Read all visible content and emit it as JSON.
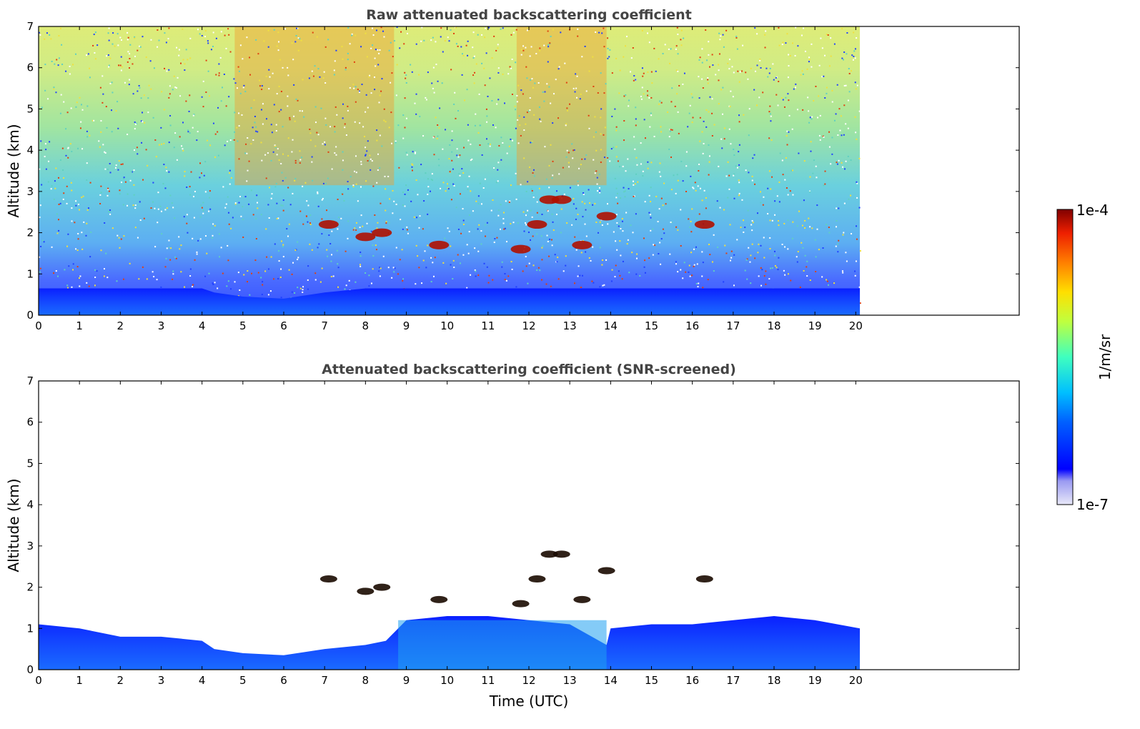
{
  "chart_data": [
    {
      "type": "heatmap",
      "title": "Raw attenuated backscattering coefficient",
      "xlabel": "",
      "ylabel": "Altitude (km)",
      "xlim": [
        0,
        24
      ],
      "ylim": [
        0,
        7
      ],
      "xticks": [
        "0",
        "1",
        "2",
        "3",
        "4",
        "5",
        "6",
        "7",
        "8",
        "9",
        "10",
        "11",
        "12",
        "13",
        "14",
        "15",
        "16",
        "17",
        "18",
        "19",
        "20"
      ],
      "yticks": [
        "0",
        "1",
        "2",
        "3",
        "4",
        "5",
        "6",
        "7"
      ],
      "data_extent_hours": [
        0,
        20.1
      ],
      "clouds": [
        {
          "t": 7.1,
          "z": 2.2
        },
        {
          "t": 8.0,
          "z": 1.9
        },
        {
          "t": 8.4,
          "z": 2.0
        },
        {
          "t": 9.8,
          "z": 1.7
        },
        {
          "t": 11.8,
          "z": 1.6
        },
        {
          "t": 12.2,
          "z": 2.2
        },
        {
          "t": 12.5,
          "z": 2.8
        },
        {
          "t": 12.8,
          "z": 2.8
        },
        {
          "t": 13.3,
          "z": 1.7
        },
        {
          "t": 13.9,
          "z": 2.4
        },
        {
          "t": 16.3,
          "z": 2.2
        }
      ]
    },
    {
      "type": "heatmap",
      "title": "Attenuated backscattering coefficient (SNR-screened)",
      "xlabel": "Time (UTC)",
      "ylabel": "Altitude (km)",
      "xlim": [
        0,
        24
      ],
      "ylim": [
        0,
        7
      ],
      "xticks": [
        "0",
        "1",
        "2",
        "3",
        "4",
        "5",
        "6",
        "7",
        "8",
        "9",
        "10",
        "11",
        "12",
        "13",
        "14",
        "15",
        "16",
        "17",
        "18",
        "19",
        "20"
      ],
      "yticks": [
        "0",
        "1",
        "2",
        "3",
        "4",
        "5",
        "6",
        "7"
      ],
      "data_extent_hours": [
        0,
        20.1
      ],
      "boundary_layer_top_km": [
        [
          0,
          1.1
        ],
        [
          1,
          1.0
        ],
        [
          2,
          0.8
        ],
        [
          3,
          0.8
        ],
        [
          4,
          0.7
        ],
        [
          4.3,
          0.5
        ],
        [
          5,
          0.4
        ],
        [
          6,
          0.35
        ],
        [
          7,
          0.5
        ],
        [
          8,
          0.6
        ],
        [
          8.5,
          0.7
        ],
        [
          9,
          1.2
        ],
        [
          10,
          1.3
        ],
        [
          11,
          1.3
        ],
        [
          12,
          1.2
        ],
        [
          13,
          1.1
        ],
        [
          13.9,
          0.6
        ],
        [
          14,
          1.0
        ],
        [
          15,
          1.1
        ],
        [
          16,
          1.1
        ],
        [
          17,
          1.2
        ],
        [
          18,
          1.3
        ],
        [
          19,
          1.2
        ],
        [
          20.1,
          1.0
        ]
      ]
    }
  ],
  "colorbar": {
    "label": "1/m/sr",
    "max_label": "1e-4",
    "min_label": "1e-7",
    "scale": "log",
    "colormap": "jet"
  }
}
